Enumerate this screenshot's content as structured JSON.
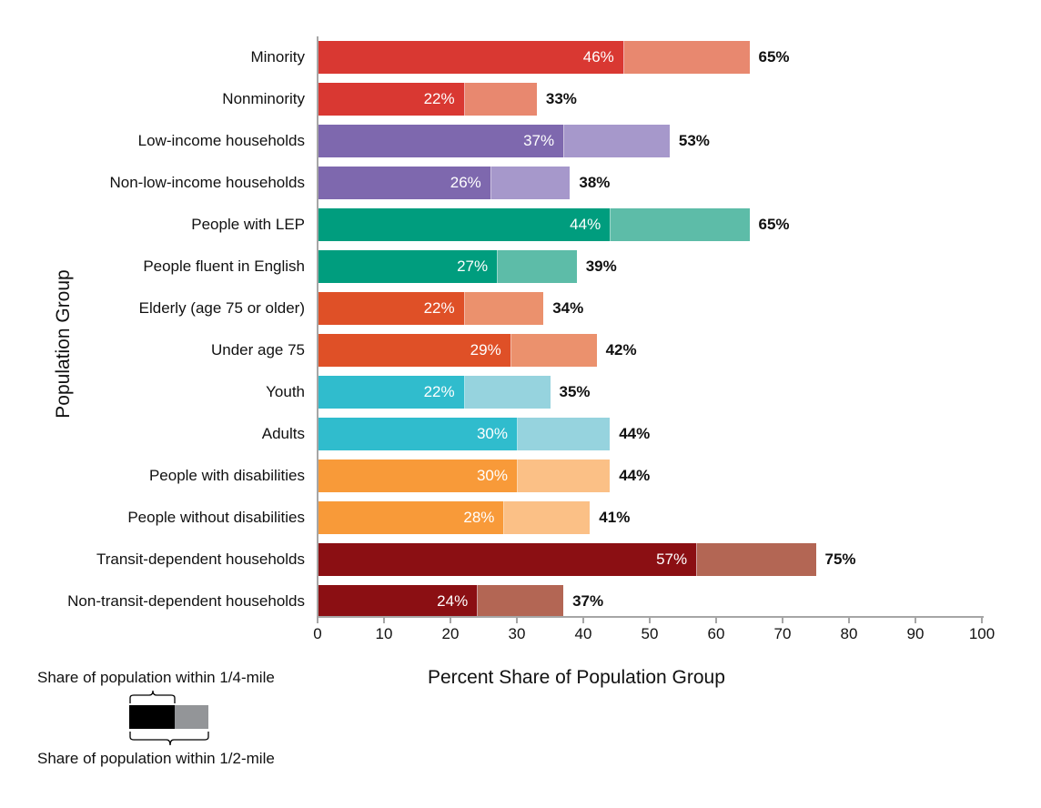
{
  "chart_data": {
    "type": "bar",
    "orientation": "horizontal",
    "title": "",
    "xlabel": "Percent Share of Population Group",
    "ylabel": "Population Group",
    "xlim": [
      0,
      100
    ],
    "x_ticks": [
      "0",
      "10",
      "20",
      "30",
      "40",
      "50",
      "60",
      "70",
      "80",
      "90",
      "100"
    ],
    "grid": false,
    "categories": [
      "Minority",
      "Nonminority",
      "Low-income households",
      "Non-low-income households",
      "People with LEP",
      "People fluent in English",
      "Elderly (age 75 or older)",
      "Under age 75",
      "Youth",
      "Adults",
      "People with disabilities",
      "People without disabilities",
      "Transit-dependent households",
      "Non-transit-dependent households"
    ],
    "series": [
      {
        "name": "Share of population within 1/4-mile",
        "values": [
          46,
          22,
          37,
          26,
          44,
          27,
          22,
          29,
          22,
          30,
          30,
          28,
          57,
          24
        ]
      },
      {
        "name": "Share of population within 1/2-mile",
        "values": [
          65,
          33,
          53,
          38,
          65,
          39,
          34,
          42,
          35,
          44,
          44,
          41,
          75,
          37
        ]
      }
    ],
    "legend": {
      "position": "bottom-left",
      "entries": [
        "Share of population within 1/4-mile",
        "Share of population within 1/2-mile"
      ]
    }
  },
  "bars": [
    {
      "label": "Minority",
      "quarter": 46,
      "half": 65,
      "quarter_text": "46%",
      "half_text": "65%",
      "dark": "#d93832",
      "light": "#e8886f"
    },
    {
      "label": "Nonminority",
      "quarter": 22,
      "half": 33,
      "quarter_text": "22%",
      "half_text": "33%",
      "dark": "#d93832",
      "light": "#e8886f"
    },
    {
      "label": "Low-income households",
      "quarter": 37,
      "half": 53,
      "quarter_text": "37%",
      "half_text": "53%",
      "dark": "#7e68ae",
      "light": "#a698cb"
    },
    {
      "label": "Non-low-income households",
      "quarter": 26,
      "half": 38,
      "quarter_text": "26%",
      "half_text": "38%",
      "dark": "#7e68ae",
      "light": "#a698cb"
    },
    {
      "label": "People with LEP",
      "quarter": 44,
      "half": 65,
      "quarter_text": "44%",
      "half_text": "65%",
      "dark": "#009d7e",
      "light": "#5dbca8"
    },
    {
      "label": "People fluent in English",
      "quarter": 27,
      "half": 39,
      "quarter_text": "27%",
      "half_text": "39%",
      "dark": "#009d7e",
      "light": "#5dbca8"
    },
    {
      "label": "Elderly (age 75 or older)",
      "quarter": 22,
      "half": 34,
      "quarter_text": "22%",
      "half_text": "34%",
      "dark": "#df5027",
      "light": "#eb916d"
    },
    {
      "label": "Under age 75",
      "quarter": 29,
      "half": 42,
      "quarter_text": "29%",
      "half_text": "42%",
      "dark": "#df5027",
      "light": "#eb916d"
    },
    {
      "label": "Youth",
      "quarter": 22,
      "half": 35,
      "quarter_text": "22%",
      "half_text": "35%",
      "dark": "#30bccd",
      "light": "#96d3de"
    },
    {
      "label": "Adults",
      "quarter": 30,
      "half": 44,
      "quarter_text": "30%",
      "half_text": "44%",
      "dark": "#30bccd",
      "light": "#96d3de"
    },
    {
      "label": "People with disabilities",
      "quarter": 30,
      "half": 44,
      "quarter_text": "30%",
      "half_text": "44%",
      "dark": "#f89a39",
      "light": "#fbc086"
    },
    {
      "label": "People without disabilities",
      "quarter": 28,
      "half": 41,
      "quarter_text": "28%",
      "half_text": "41%",
      "dark": "#f89a39",
      "light": "#fbc086"
    },
    {
      "label": "Transit-dependent households",
      "quarter": 57,
      "half": 75,
      "quarter_text": "57%",
      "half_text": "75%",
      "dark": "#8b0f13",
      "light": "#b36654"
    },
    {
      "label": "Non-transit-dependent households",
      "quarter": 24,
      "half": 37,
      "quarter_text": "24%",
      "half_text": "37%",
      "dark": "#8b0f13",
      "light": "#b36654"
    }
  ],
  "axis": {
    "x_title": "Percent Share of Population Group",
    "y_title": "Population Group",
    "ticks": [
      "0",
      "10",
      "20",
      "30",
      "40",
      "50",
      "60",
      "70",
      "80",
      "90",
      "100"
    ]
  },
  "legend": {
    "top_label": "Share of population within 1/4-mile",
    "bottom_label": "Share of population within 1/2-mile",
    "dark_color": "#000000",
    "light_color": "#939598"
  }
}
